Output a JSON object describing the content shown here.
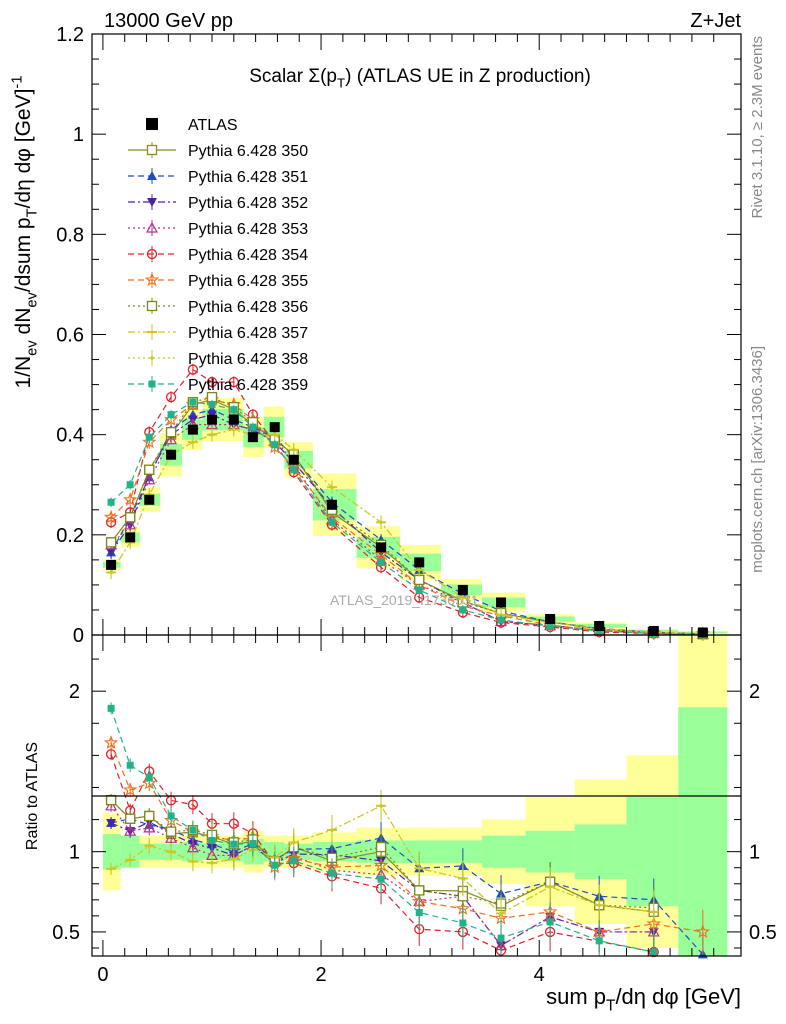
{
  "header": {
    "left": "13000 GeV pp",
    "right": "Z+Jet"
  },
  "side": {
    "top": "Rivet 3.1.10, ≥ 2.3M events",
    "bottom": "mcplots.cern.ch [arXiv:1306.3436]"
  },
  "watermark": "ATLAS_2019_I1736531",
  "chart_data": [
    {
      "type": "line",
      "title": "Scalar Σ(p_T) (ATLAS UE in Z production)",
      "ylabel": "1/N_ev dN_ev/dsum p_T/dη dφ [GeV]^-1",
      "xlim": [
        -0.1,
        5.85
      ],
      "ylim": [
        0,
        1.2
      ],
      "yticks": [
        "0",
        "0.2",
        "0.4",
        "0.6",
        "0.8",
        "1",
        "1.2"
      ],
      "x": [
        0.075,
        0.25,
        0.425,
        0.625,
        0.825,
        1.0,
        1.2,
        1.375,
        1.575,
        1.75,
        2.1,
        2.55,
        2.9,
        3.3,
        3.65,
        4.1,
        4.55,
        5.05,
        5.5
      ],
      "atlas": [
        0.14,
        0.195,
        0.27,
        0.36,
        0.41,
        0.43,
        0.43,
        0.395,
        0.415,
        0.35,
        0.26,
        0.175,
        0.145,
        0.09,
        0.065,
        0.032,
        0.018,
        0.008,
        0.005
      ],
      "band_half_width": [
        0.04,
        0.05,
        0.045,
        0.06,
        0.05,
        0.05,
        0.05,
        0.05,
        0.05,
        0.05,
        0.12,
        0.12,
        0.12,
        0.12,
        0.15,
        0.15,
        0.2,
        0.25,
        0.3
      ],
      "legend": {
        "data_label": "ATLAS",
        "series": [
          {
            "name": "Pythia 6.428 350",
            "color": "#8b8b2a",
            "marker": "square-open",
            "dash": "solid"
          },
          {
            "name": "Pythia 6.428 351",
            "color": "#1f4fbf",
            "marker": "triangle-up",
            "dash": "dashed"
          },
          {
            "name": "Pythia 6.428 352",
            "color": "#4b23a8",
            "marker": "triangle-down",
            "dash": "dashdot"
          },
          {
            "name": "Pythia 6.428 353",
            "color": "#b5338c",
            "marker": "triangle-open",
            "dash": "dotted"
          },
          {
            "name": "Pythia 6.428 354",
            "color": "#e0202c",
            "marker": "circle-open",
            "dash": "dashed"
          },
          {
            "name": "Pythia 6.428 355",
            "color": "#f07020",
            "marker": "star",
            "dash": "dashed"
          },
          {
            "name": "Pythia 6.428 356",
            "color": "#7a8a1a",
            "marker": "square-open",
            "dash": "dotted"
          },
          {
            "name": "Pythia 6.428 357",
            "color": "#d9c21a",
            "marker": "dash",
            "dash": "dashdot"
          },
          {
            "name": "Pythia 6.428 358",
            "color": "#c2cc2a",
            "marker": "dot",
            "dash": "dotted"
          },
          {
            "name": "Pythia 6.428 359",
            "color": "#22b28a",
            "marker": "square",
            "dash": "dashed"
          }
        ]
      },
      "series": [
        {
          "name": "Pythia 6.428 350",
          "values": [
            0.185,
            0.235,
            0.33,
            0.4,
            0.46,
            0.47,
            0.45,
            0.42,
            0.39,
            0.36,
            0.245,
            0.175,
            0.11,
            0.068,
            0.043,
            0.026,
            0.012,
            0.005,
            0.0017
          ]
        },
        {
          "name": "Pythia 6.428 351",
          "values": [
            0.165,
            0.235,
            0.315,
            0.41,
            0.44,
            0.45,
            0.43,
            0.415,
            0.395,
            0.355,
            0.265,
            0.19,
            0.13,
            0.082,
            0.048,
            0.026,
            0.013,
            0.0056,
            0.0018
          ]
        },
        {
          "name": "Pythia 6.428 352",
          "values": [
            0.165,
            0.22,
            0.32,
            0.4,
            0.43,
            0.44,
            0.42,
            0.41,
            0.385,
            0.345,
            0.255,
            0.165,
            0.11,
            0.065,
            0.027,
            0.019,
            0.009,
            0.004,
            0.0017
          ]
        },
        {
          "name": "Pythia 6.428 353",
          "values": [
            0.18,
            0.22,
            0.31,
            0.39,
            0.42,
            0.42,
            0.42,
            0.41,
            0.395,
            0.34,
            0.23,
            0.15,
            0.1,
            0.065,
            0.027,
            0.019,
            0.009,
            0.004,
            0.0017
          ]
        },
        {
          "name": "Pythia 6.428 354",
          "values": [
            0.225,
            0.245,
            0.405,
            0.475,
            0.53,
            0.505,
            0.505,
            0.44,
            0.385,
            0.325,
            0.22,
            0.135,
            0.075,
            0.045,
            0.025,
            0.016,
            0.006,
            0.003,
            0.0012
          ]
        },
        {
          "name": "Pythia 6.428 355",
          "values": [
            0.235,
            0.27,
            0.385,
            0.43,
            0.46,
            0.47,
            0.46,
            0.43,
            0.375,
            0.335,
            0.235,
            0.16,
            0.1,
            0.058,
            0.038,
            0.02,
            0.009,
            0.0044,
            0.0025
          ]
        },
        {
          "name": "Pythia 6.428 356",
          "values": [
            0.185,
            0.235,
            0.33,
            0.405,
            0.465,
            0.475,
            0.455,
            0.425,
            0.39,
            0.36,
            0.25,
            0.18,
            0.11,
            0.065,
            0.044,
            0.026,
            0.012,
            0.0052,
            0.0017
          ]
        },
        {
          "name": "Pythia 6.428 357",
          "values": [
            0.125,
            0.185,
            0.28,
            0.36,
            0.385,
            0.4,
            0.41,
            0.4,
            0.4,
            0.37,
            0.295,
            0.225,
            0.13,
            0.075,
            0.04,
            0.025,
            0.012,
            0.005,
            0.0015
          ]
        },
        {
          "name": "Pythia 6.428 358",
          "values": [
            0.125,
            0.185,
            0.28,
            0.36,
            0.385,
            0.4,
            0.41,
            0.4,
            0.4,
            0.37,
            0.295,
            0.225,
            0.13,
            0.075,
            0.04,
            0.025,
            0.012,
            0.005,
            0.0015
          ]
        },
        {
          "name": "Pythia 6.428 359",
          "values": [
            0.265,
            0.3,
            0.395,
            0.44,
            0.465,
            0.46,
            0.45,
            0.415,
            0.38,
            0.33,
            0.225,
            0.145,
            0.09,
            0.05,
            0.03,
            0.018,
            0.008,
            0.003,
            0.0012
          ]
        }
      ]
    },
    {
      "type": "line",
      "title": "",
      "ylabel": "Ratio to ATLAS",
      "xlabel": "sum p_T/dη dφ [GeV]",
      "xlim": [
        -0.1,
        5.85
      ],
      "ylim": [
        0.35,
        2.35
      ],
      "xticks": [
        "0",
        "2",
        "4"
      ],
      "yticks": [
        "0.5",
        "1",
        "2"
      ],
      "band_inner": [
        0.11,
        0.1,
        0.05,
        0.05,
        0.06,
        0.05,
        0.06,
        0.08,
        0.06,
        0.05,
        0.06,
        0.07,
        0.07,
        0.07,
        0.1,
        0.13,
        0.17,
        0.34,
        0.9
      ],
      "band_outer": [
        0.24,
        0.1,
        0.1,
        0.1,
        0.1,
        0.1,
        0.1,
        0.13,
        0.1,
        0.1,
        0.12,
        0.15,
        0.15,
        0.15,
        0.2,
        0.34,
        0.45,
        0.6,
        1.4
      ],
      "reference": 1
    }
  ]
}
